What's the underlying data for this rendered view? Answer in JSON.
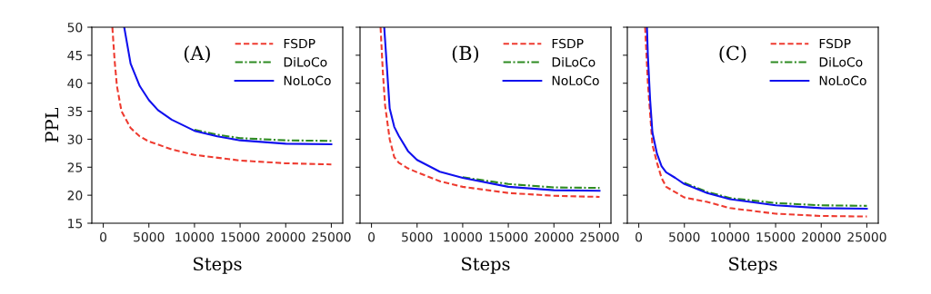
{
  "chart_data": [
    {
      "type": "line",
      "xlabel": "Steps",
      "ylabel": "PPL",
      "annotations": [
        "(A)"
      ],
      "xlim": [
        -1250,
        26250
      ],
      "ylim": [
        15,
        50
      ],
      "xticks": [
        0,
        5000,
        10000,
        15000,
        20000,
        25000
      ],
      "yticks": [
        15,
        20,
        25,
        30,
        35,
        40,
        45,
        50
      ],
      "legend": "top right",
      "grid": false,
      "series": [
        {
          "name": "FSDP",
          "color": "#ee3b30",
          "line_style": "dashed",
          "x": [
            1000,
            1250,
            1500,
            2000,
            3000,
            4000,
            5000,
            7500,
            10000,
            15000,
            20000,
            25000
          ],
          "values": [
            50,
            44,
            39.5,
            35,
            32,
            30.5,
            29.6,
            28.2,
            27.2,
            26.2,
            25.7,
            25.5
          ]
        },
        {
          "name": "DiLoCo",
          "color": "#2e8b22",
          "line_style": "dashdot",
          "x": [
            10000,
            12500,
            15000,
            20000,
            25000
          ],
          "values": [
            31.7,
            30.8,
            30.2,
            29.8,
            29.7
          ]
        },
        {
          "name": "NoLoCo",
          "color": "#1010ee",
          "line_style": "solid",
          "x": [
            2300,
            3000,
            4000,
            5000,
            6000,
            7500,
            10000,
            12500,
            15000,
            20000,
            25000
          ],
          "values": [
            50,
            43.5,
            39.5,
            37,
            35.2,
            33.5,
            31.5,
            30.5,
            29.8,
            29.2,
            29.1
          ]
        }
      ]
    },
    {
      "type": "line",
      "xlabel": "Steps",
      "annotations": [
        "(B)"
      ],
      "xlim": [
        -1250,
        26250
      ],
      "ylim": [
        15,
        50
      ],
      "xticks": [
        0,
        5000,
        10000,
        15000,
        20000,
        25000
      ],
      "yticks": [
        15,
        20,
        25,
        30,
        35,
        40,
        45,
        50
      ],
      "tick_labels": "x",
      "legend": "top right",
      "grid": false,
      "series": [
        {
          "name": "FSDP",
          "color": "#ee3b30",
          "line_style": "dashed",
          "x": [
            1000,
            1250,
            1500,
            2000,
            2500,
            3000,
            4000,
            5000,
            7500,
            10000,
            15000,
            20000,
            25000
          ],
          "values": [
            50,
            42,
            36,
            30,
            26.8,
            25.8,
            24.8,
            24.1,
            22.5,
            21.5,
            20.4,
            19.9,
            19.7
          ]
        },
        {
          "name": "DiLoCo",
          "color": "#2e8b22",
          "line_style": "dashdot",
          "x": [
            10000,
            15000,
            20000,
            25000
          ],
          "values": [
            23.2,
            22.0,
            21.4,
            21.3
          ]
        },
        {
          "name": "NoLoCo",
          "color": "#1010ee",
          "line_style": "solid",
          "x": [
            1400,
            2000,
            2500,
            3000,
            4000,
            5000,
            7500,
            10000,
            15000,
            20000,
            25000
          ],
          "values": [
            50,
            35.5,
            32.2,
            30.6,
            27.9,
            26.3,
            24.2,
            23.1,
            21.5,
            20.9,
            20.8
          ]
        }
      ]
    },
    {
      "type": "line",
      "xlabel": "Steps",
      "annotations": [
        "(C)"
      ],
      "xlim": [
        -1250,
        26250
      ],
      "ylim": [
        15,
        50
      ],
      "xticks": [
        0,
        5000,
        10000,
        15000,
        20000,
        25000
      ],
      "yticks": [
        15,
        20,
        25,
        30,
        35,
        40,
        45,
        50
      ],
      "tick_labels": "x",
      "legend": "top right",
      "grid": false,
      "series": [
        {
          "name": "FSDP",
          "color": "#ee3b30",
          "line_style": "dashed",
          "x": [
            700,
            1000,
            1500,
            2000,
            2500,
            3000,
            5000,
            7500,
            10000,
            15000,
            20000,
            25000
          ],
          "values": [
            50,
            40,
            29,
            25.8,
            23.1,
            21.5,
            19.6,
            18.8,
            17.7,
            16.7,
            16.3,
            16.2
          ]
        },
        {
          "name": "DiLoCo",
          "color": "#2e8b22",
          "line_style": "dashdot",
          "x": [
            5000,
            7500,
            10000,
            15000,
            20000,
            25000
          ],
          "values": [
            22.2,
            20.6,
            19.5,
            18.6,
            18.2,
            18.1
          ]
        },
        {
          "name": "NoLoCo",
          "color": "#1010ee",
          "line_style": "solid",
          "x": [
            900,
            1000,
            1250,
            1500,
            2000,
            2500,
            3000,
            4000,
            5000,
            7500,
            10000,
            15000,
            20000,
            25000
          ],
          "values": [
            50,
            45,
            37,
            31.2,
            27.4,
            25.2,
            24.1,
            23.1,
            22,
            20.4,
            19.3,
            18.2,
            17.7,
            17.6
          ]
        }
      ]
    }
  ]
}
